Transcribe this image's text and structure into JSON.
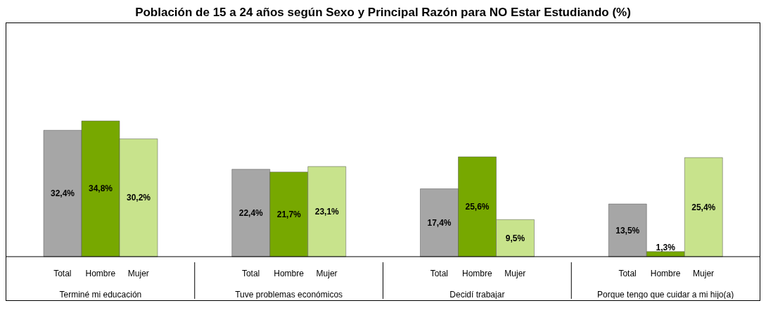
{
  "chart_data": {
    "type": "bar",
    "title": "Población de 15 a 24 años según Sexo y Principal Razón para NO Estar Estudiando (%)",
    "categories": [
      "Terminé mi educación",
      "Tuve problemas económicos",
      "Decidí trabajar",
      "Porque tengo que cuidar a mi hijo(a)"
    ],
    "series": [
      {
        "name": "Total",
        "color": "#a6a6a6",
        "values": [
          32.4,
          22.4,
          17.4,
          13.5
        ],
        "value_labels": [
          "32,4%",
          "22,4%",
          "17,4%",
          "13,5%"
        ]
      },
      {
        "name": "Hombre",
        "color": "#77a800",
        "values": [
          34.8,
          21.7,
          25.6,
          1.3
        ],
        "value_labels": [
          "34,8%",
          "21,7%",
          "25,6%",
          "1,3%"
        ]
      },
      {
        "name": "Mujer",
        "color": "#c8e38c",
        "values": [
          30.2,
          23.1,
          9.5,
          25.4
        ],
        "value_labels": [
          "30,2%",
          "23,1%",
          "9,5%",
          "25,4%"
        ]
      }
    ]
  }
}
